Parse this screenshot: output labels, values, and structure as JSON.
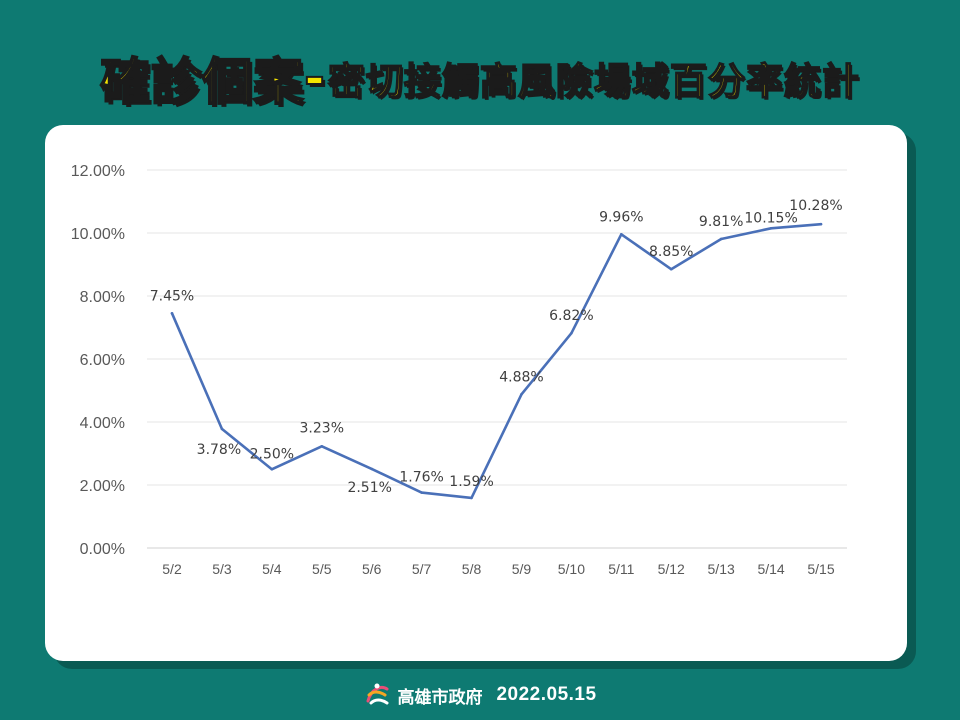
{
  "title": {
    "main": "確診個案",
    "dash": "-",
    "sub": "密切接觸高風險場域百分率統計"
  },
  "footer": {
    "org": "高雄市政府",
    "date": "2022.05.15"
  },
  "colors": {
    "background": "#0e7a72",
    "title": "#f5e400",
    "line": "#4a70b8"
  },
  "chart_data": {
    "type": "line",
    "title": "",
    "xlabel": "",
    "ylabel": "",
    "categories": [
      "5/2",
      "5/3",
      "5/4",
      "5/5",
      "5/6",
      "5/7",
      "5/8",
      "5/9",
      "5/10",
      "5/11",
      "5/12",
      "5/13",
      "5/14",
      "5/15"
    ],
    "values": [
      7.45,
      3.78,
      2.5,
      3.23,
      2.51,
      1.76,
      1.59,
      4.88,
      6.82,
      9.96,
      8.85,
      9.81,
      10.15,
      10.28
    ],
    "data_labels": [
      "7.45%",
      "3.78%",
      "2.50%",
      "3.23%",
      "2.51%",
      "1.76%",
      "1.59%",
      "4.88%",
      "6.82%",
      "9.96%",
      "8.85%",
      "9.81%",
      "10.15%",
      "10.28%"
    ],
    "y_ticks": [
      "0.00%",
      "2.00%",
      "4.00%",
      "6.00%",
      "8.00%",
      "10.00%",
      "12.00%"
    ],
    "ylim": [
      0,
      12
    ],
    "grid": true,
    "legend": "none"
  }
}
